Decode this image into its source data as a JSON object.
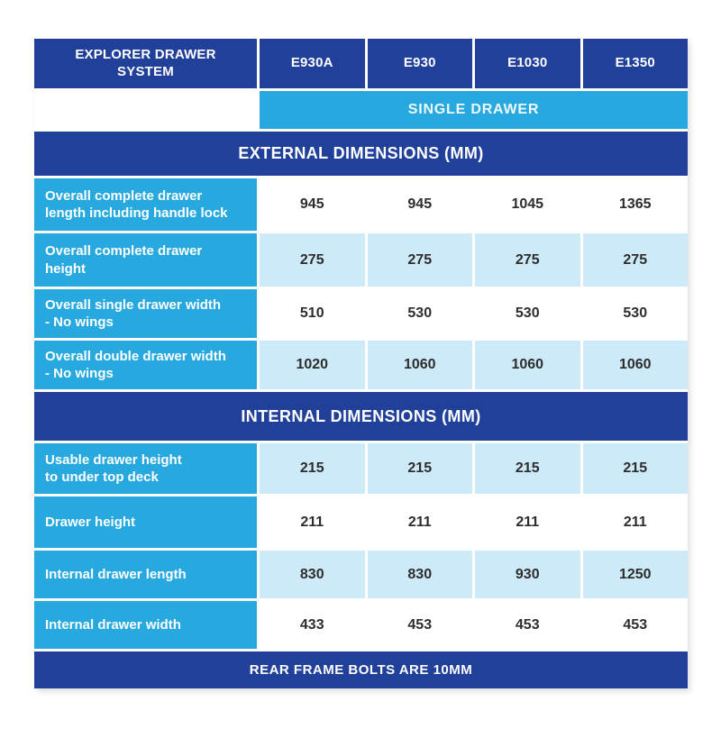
{
  "table": {
    "header": {
      "title": "EXPLORER DRAWER SYSTEM",
      "columns": [
        "E930A",
        "E930",
        "E1030",
        "E1350"
      ]
    },
    "subheader": "SINGLE DRAWER",
    "sections": [
      {
        "title": "EXTERNAL DIMENSIONS (MM)",
        "rows": [
          {
            "label": "Overall complete drawer\nlength including handle lock",
            "values": [
              "945",
              "945",
              "1045",
              "1365"
            ]
          },
          {
            "label": "Overall complete drawer\nheight",
            "values": [
              "275",
              "275",
              "275",
              "275"
            ]
          },
          {
            "label": "Overall single drawer width\n- No wings",
            "values": [
              "510",
              "530",
              "530",
              "530"
            ]
          },
          {
            "label": "Overall double drawer width\n- No wings",
            "values": [
              "1020",
              "1060",
              "1060",
              "1060"
            ]
          }
        ]
      },
      {
        "title": "INTERNAL DIMENSIONS (MM)",
        "rows": [
          {
            "label": "Usable drawer height\nto under top deck",
            "values": [
              "215",
              "215",
              "215",
              "215"
            ]
          },
          {
            "label": "Drawer height",
            "values": [
              "211",
              "211",
              "211",
              "211"
            ]
          },
          {
            "label": "Internal drawer length",
            "values": [
              "830",
              "830",
              "930",
              "1250"
            ]
          },
          {
            "label": "Internal drawer width",
            "values": [
              "433",
              "453",
              "453",
              "453"
            ]
          }
        ]
      }
    ],
    "footer": "REAR FRAME BOLTS ARE 10MM",
    "colors": {
      "dark_blue": "#21409a",
      "cyan": "#27a9e0",
      "light_blue": "#cdeaf9",
      "value_text": "#2d2d2d",
      "header_text": "#ffffff"
    }
  }
}
